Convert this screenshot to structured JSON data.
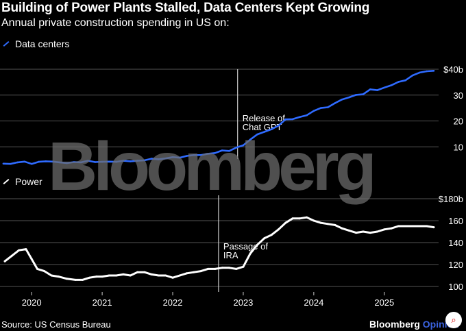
{
  "header": {
    "title": "Building of Power Plants Stalled, Data Centers Kept Growing",
    "subtitle": "Annual private construction spending in US on:"
  },
  "watermark": "Bloomberg",
  "footer": {
    "source": "Source: US Census Bureau",
    "brand_main": "Bloomberg",
    "brand_accent": "Opinion"
  },
  "colors": {
    "data_centers": "#2f6bff",
    "power": "#ffffff",
    "grid": "#555555",
    "accent": "#3b63e0"
  },
  "chart_data": [
    {
      "type": "line",
      "name": "Data centers",
      "legend": "Data centers",
      "unit": "$ billions",
      "ylim": [
        0,
        40
      ],
      "yticks": [
        {
          "value": 10,
          "label": "10"
        },
        {
          "value": 20,
          "label": "20"
        },
        {
          "value": 30,
          "label": "30"
        },
        {
          "value": 40,
          "label": "$40b"
        }
      ],
      "xlim": [
        2019.6,
        2025.75
      ],
      "annotation": {
        "x": 2022.92,
        "lines": [
          "Release of",
          "Chat GPT"
        ]
      },
      "x": [
        2019.6,
        2019.7,
        2019.8,
        2019.9,
        2020.0,
        2020.1,
        2020.2,
        2020.3,
        2020.4,
        2020.5,
        2020.6,
        2020.7,
        2020.8,
        2020.9,
        2021.0,
        2021.1,
        2021.2,
        2021.3,
        2021.4,
        2021.5,
        2021.6,
        2021.7,
        2021.8,
        2021.9,
        2022.0,
        2022.1,
        2022.2,
        2022.3,
        2022.4,
        2022.5,
        2022.6,
        2022.7,
        2022.8,
        2022.9,
        2023.0,
        2023.1,
        2023.2,
        2023.3,
        2023.4,
        2023.5,
        2023.6,
        2023.7,
        2023.8,
        2023.9,
        2024.0,
        2024.1,
        2024.2,
        2024.3,
        2024.4,
        2024.5,
        2024.6,
        2024.7,
        2024.8,
        2024.9,
        2025.0,
        2025.1,
        2025.2,
        2025.3,
        2025.4,
        2025.5,
        2025.6,
        2025.7
      ],
      "values": [
        3.5,
        3.4,
        4.0,
        4.3,
        3.4,
        4.2,
        4.4,
        4.3,
        4.0,
        3.7,
        4.1,
        4.0,
        4.6,
        4.1,
        4.2,
        4.3,
        4.2,
        4.6,
        4.4,
        4.6,
        4.8,
        5.4,
        5.2,
        5.5,
        6.0,
        5.8,
        6.5,
        6.8,
        6.8,
        7.3,
        7.6,
        8.6,
        8.4,
        9.7,
        10.6,
        12.8,
        14.8,
        15.8,
        16.8,
        18.2,
        20.6,
        20.7,
        21.5,
        22.2,
        23.9,
        25.0,
        25.3,
        26.9,
        28.3,
        29.1,
        30.1,
        30.3,
        32.2,
        31.9,
        32.9,
        33.8,
        35.1,
        35.7,
        37.6,
        38.7,
        39.2,
        39.4
      ]
    },
    {
      "type": "line",
      "name": "Power",
      "legend": "Power",
      "unit": "$ billions",
      "ylim": [
        95,
        180
      ],
      "yticks": [
        {
          "value": 100,
          "label": "100"
        },
        {
          "value": 120,
          "label": "120"
        },
        {
          "value": 140,
          "label": "140"
        },
        {
          "value": 160,
          "label": "160"
        },
        {
          "value": 180,
          "label": "$180b"
        }
      ],
      "xlim": [
        2019.6,
        2025.75
      ],
      "xticks": [
        "2020",
        "2021",
        "2022",
        "2023",
        "2024",
        "2025"
      ],
      "annotation": {
        "x": 2022.65,
        "lines": [
          "Passage of",
          "IRA"
        ]
      },
      "x": [
        2019.62,
        2019.72,
        2019.82,
        2019.92,
        2020.0,
        2020.08,
        2020.18,
        2020.28,
        2020.38,
        2020.5,
        2020.62,
        2020.72,
        2020.82,
        2020.92,
        2021.0,
        2021.1,
        2021.2,
        2021.3,
        2021.4,
        2021.5,
        2021.6,
        2021.7,
        2021.8,
        2021.9,
        2022.0,
        2022.1,
        2022.2,
        2022.3,
        2022.4,
        2022.5,
        2022.6,
        2022.7,
        2022.8,
        2022.9,
        2023.0,
        2023.1,
        2023.2,
        2023.3,
        2023.4,
        2023.5,
        2023.6,
        2023.7,
        2023.8,
        2023.9,
        2024.0,
        2024.1,
        2024.2,
        2024.3,
        2024.4,
        2024.5,
        2024.6,
        2024.7,
        2024.8,
        2024.9,
        2025.0,
        2025.1,
        2025.2,
        2025.3,
        2025.4,
        2025.5,
        2025.6,
        2025.7
      ],
      "values": [
        123,
        128,
        133,
        134,
        125,
        116,
        114,
        110,
        109,
        107,
        106,
        106,
        108,
        109,
        109,
        110,
        110,
        111,
        110,
        113,
        113,
        111,
        110,
        110,
        108,
        110,
        112,
        113,
        114,
        116,
        116,
        117,
        117,
        116,
        118,
        130,
        138,
        144,
        147,
        152,
        158,
        162,
        162,
        163,
        160,
        158,
        157,
        156,
        153,
        151,
        149,
        150,
        149,
        150,
        152,
        153,
        155,
        155,
        155,
        155,
        155,
        154
      ]
    }
  ]
}
